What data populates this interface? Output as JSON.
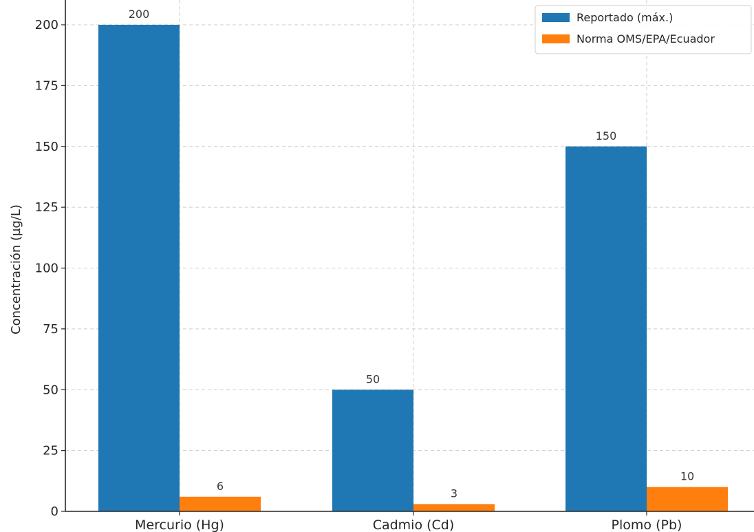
{
  "chart_data": {
    "type": "bar",
    "categories": [
      "Mercurio (Hg)",
      "Cadmio (Cd)",
      "Plomo (Pb)"
    ],
    "series": [
      {
        "name": "Reportado (máx.)",
        "values": [
          200,
          50,
          150
        ],
        "color": "#1f77b4"
      },
      {
        "name": "Norma OMS/EPA/Ecuador",
        "values": [
          6,
          3,
          10
        ],
        "color": "#ff7f0e"
      }
    ],
    "ylabel": "Concentración (µg/L)",
    "xlabel": "",
    "ylim": [
      0,
      210
    ],
    "yticks": [
      0,
      25,
      50,
      75,
      100,
      125,
      150,
      175,
      200
    ],
    "grid": true,
    "legend_position": "top-right"
  }
}
